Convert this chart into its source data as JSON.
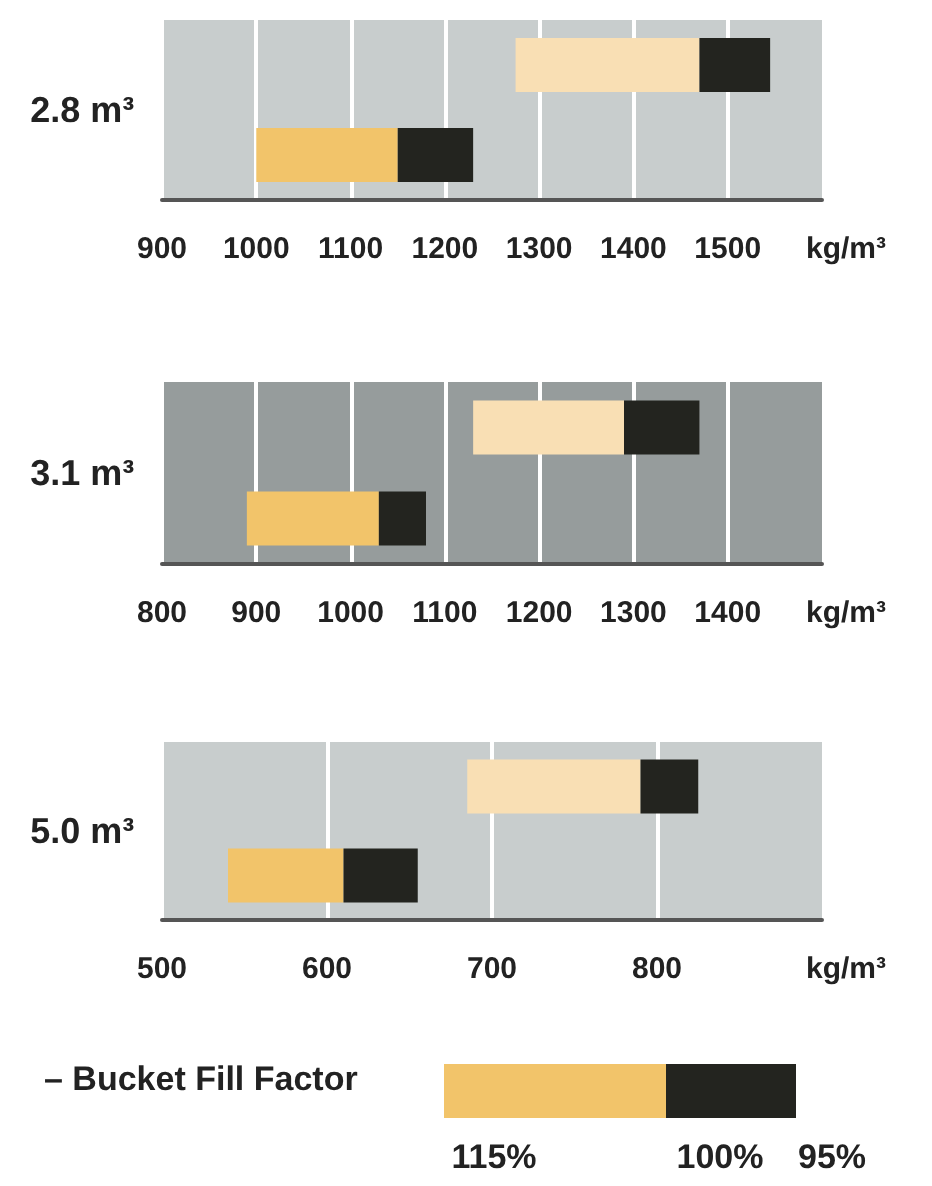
{
  "chart_data": [
    {
      "type": "bar",
      "orientation": "horizontal",
      "ylabel": "2.8 m³",
      "xlabel": "kg/m³",
      "categories": [
        null,
        null
      ],
      "series": [
        {
          "colors": [
            "#f9dfb4",
            "#f2c46a"
          ],
          "base": [
            1275,
            1000
          ],
          "values": [
            195,
            150
          ]
        },
        {
          "color": "#23241f",
          "base": [
            1470,
            1150
          ],
          "values": [
            75,
            80
          ]
        }
      ],
      "xlim": [
        900,
        1600
      ],
      "xticks": [
        900,
        1000,
        1100,
        1200,
        1300,
        1400,
        1500
      ],
      "grid": "x",
      "bands": [
        {
          "axis": "x",
          "from": 900,
          "to": 1600,
          "color": "#c8cdcd"
        }
      ]
    },
    {
      "type": "bar",
      "orientation": "horizontal",
      "ylabel": "3.1 m³",
      "xlabel": "kg/m³",
      "categories": [
        null,
        null
      ],
      "series": [
        {
          "colors": [
            "#f9dfb4",
            "#f2c46a"
          ],
          "base": [
            1130,
            890
          ],
          "values": [
            160,
            140
          ]
        },
        {
          "color": "#23241f",
          "base": [
            1290,
            1030
          ],
          "values": [
            80,
            50
          ]
        }
      ],
      "xlim": [
        800,
        1500
      ],
      "xticks": [
        800,
        900,
        1000,
        1100,
        1200,
        1300,
        1400
      ],
      "grid": "x",
      "bands": [
        {
          "axis": "x",
          "from": 800,
          "to": 1500,
          "color": "#969c9c"
        }
      ]
    },
    {
      "type": "bar",
      "orientation": "horizontal",
      "ylabel": "5.0 m³",
      "xlabel": "kg/m³",
      "categories": [
        null,
        null
      ],
      "series": [
        {
          "colors": [
            "#f9dfb4",
            "#f2c46a"
          ],
          "base": [
            685,
            540
          ],
          "values": [
            105,
            70
          ]
        },
        {
          "color": "#23241f",
          "base": [
            790,
            610
          ],
          "values": [
            35,
            45
          ]
        }
      ],
      "xlim": [
        500,
        900
      ],
      "xticks": [
        500,
        600,
        700,
        800
      ],
      "grid": "x",
      "bands": [
        {
          "axis": "x",
          "from": 500,
          "to": 900,
          "color": "#c8cdcd"
        }
      ]
    },
    {
      "type": "other",
      "title": "– Bucket Fill Factor",
      "annotations": [
        "115%",
        "100%",
        "95%"
      ],
      "colors": [
        "#f2c46a",
        "#23241f"
      ]
    }
  ]
}
